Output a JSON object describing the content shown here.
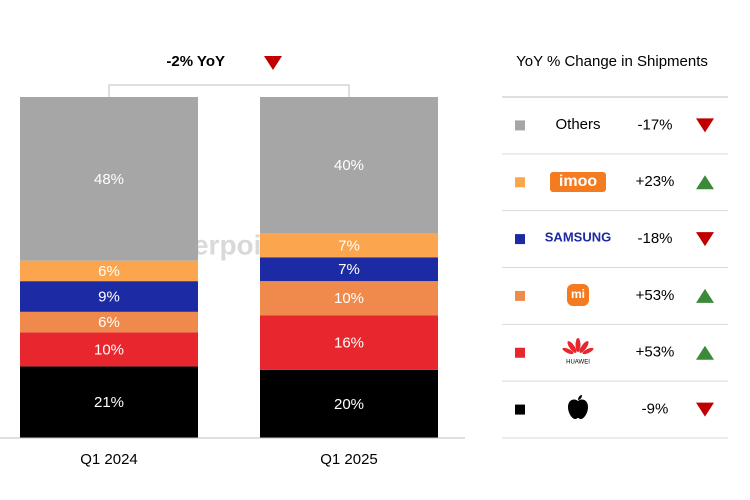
{
  "chart_data": {
    "type": "stacked_bar",
    "annotation": {
      "value": -2,
      "label": "-2% YoY"
    },
    "watermark": "Counterpoint",
    "legend_title": "YoY % Change in Shipments",
    "categories": [
      "Q1 2024",
      "Q1 2025"
    ],
    "ylim": [
      0,
      100
    ],
    "series": [
      {
        "color": "#000000",
        "values": [
          21,
          20
        ],
        "value_labels": [
          "21%",
          "20%"
        ],
        "yoy": -9,
        "yoy_label": "-9%"
      },
      {
        "name": "HUAWEI",
        "color": "#e8262d",
        "values": [
          10,
          16
        ],
        "value_labels": [
          "10%",
          "16%"
        ],
        "yoy": 53,
        "yoy_label": "+53%"
      },
      {
        "name": "mi",
        "color": "#ef8a4c",
        "values": [
          6,
          10
        ],
        "value_labels": [
          "6%",
          "10%"
        ],
        "yoy": 53,
        "yoy_label": "+53%"
      },
      {
        "name": "SAMSUNG",
        "color": "#1c2aa3",
        "values": [
          9,
          7
        ],
        "value_labels": [
          "9%",
          "7%"
        ],
        "yoy": -18,
        "yoy_label": "-18%"
      },
      {
        "name": "imoo",
        "color": "#fba64f",
        "values": [
          6,
          7
        ],
        "value_labels": [
          "6%",
          "7%"
        ],
        "yoy": 23,
        "yoy_label": "+23%"
      },
      {
        "name": "Others",
        "color": "#a6a6a6",
        "values": [
          48,
          40
        ],
        "value_labels": [
          "48%",
          "40%"
        ],
        "yoy": -17,
        "yoy_label": "-17%"
      }
    ]
  }
}
